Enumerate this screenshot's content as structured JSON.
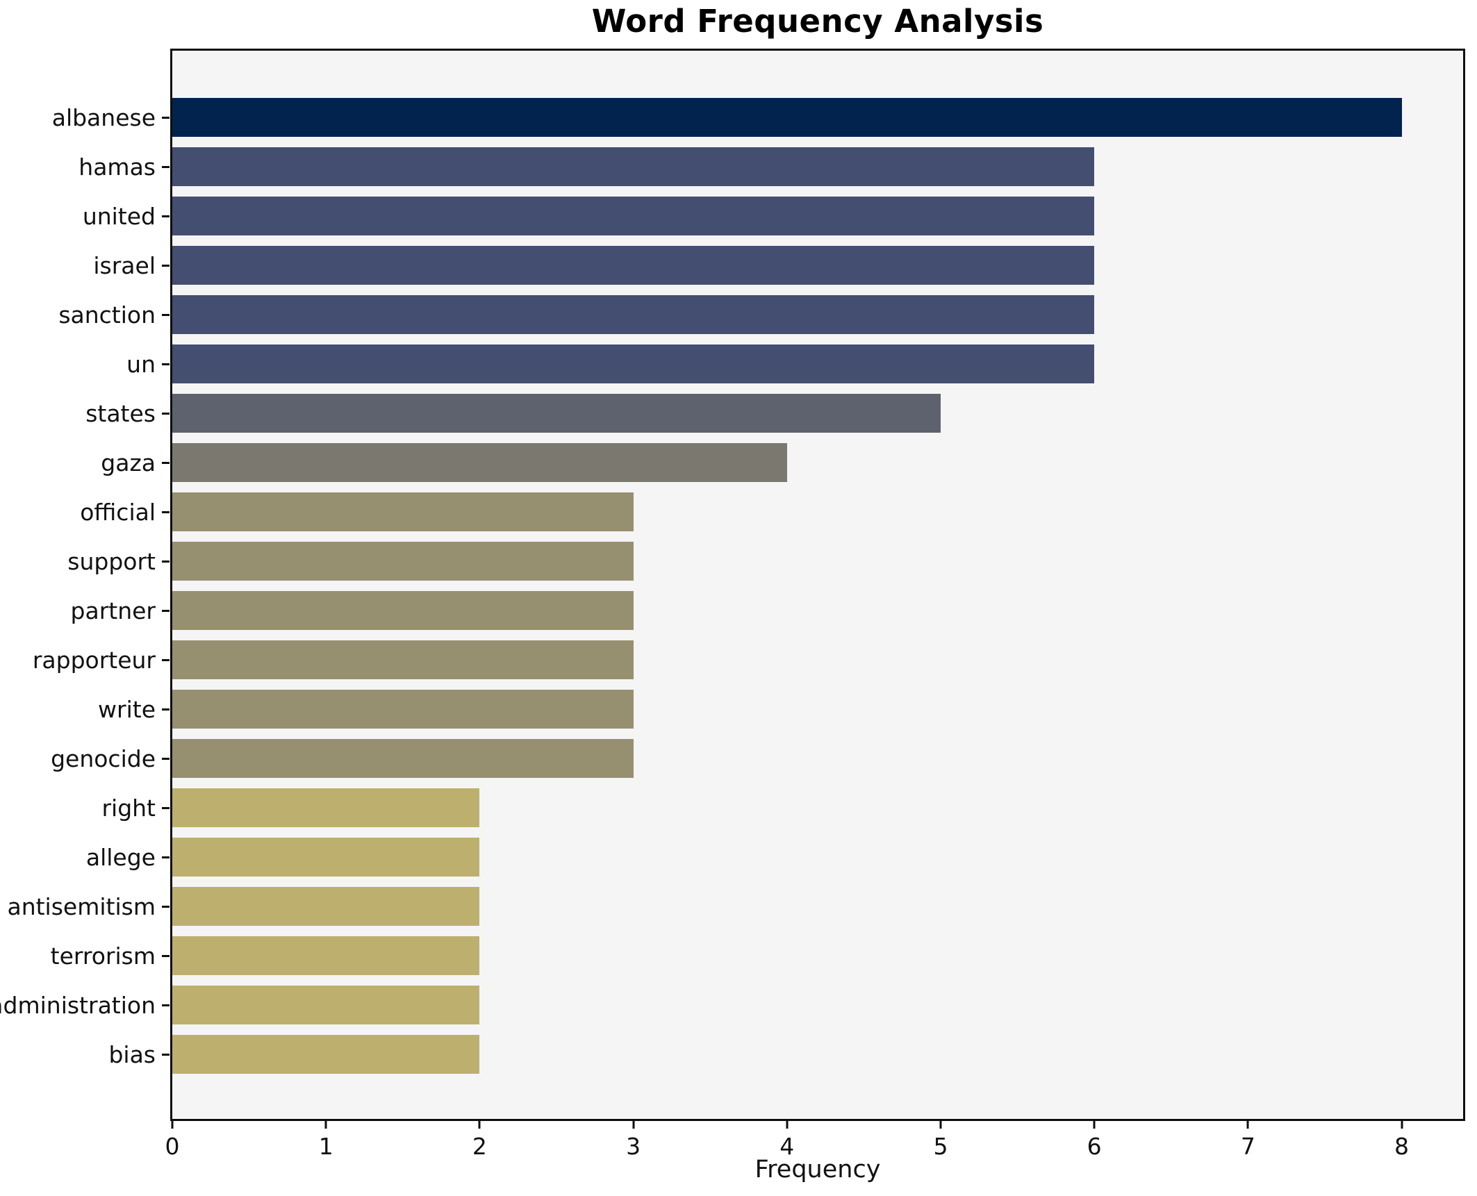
{
  "chart_data": {
    "type": "bar",
    "orientation": "horizontal",
    "title": "Word Frequency Analysis",
    "xlabel": "Frequency",
    "ylabel": "",
    "xlim": [
      0,
      8.4
    ],
    "x_ticks": [
      0,
      1,
      2,
      3,
      4,
      5,
      6,
      7,
      8
    ],
    "grid": false,
    "legend": false,
    "plot_background": "#f5f5f6",
    "figure_background": "#ffffff",
    "axis_color": "#0e0e0e",
    "categories": [
      "albanese",
      "hamas",
      "united",
      "israel",
      "sanction",
      "un",
      "states",
      "gaza",
      "official",
      "support",
      "partner",
      "rapporteur",
      "write",
      "genocide",
      "right",
      "allege",
      "antisemitism",
      "terrorism",
      "administration",
      "bias"
    ],
    "values": [
      8,
      6,
      6,
      6,
      6,
      6,
      5,
      4,
      3,
      3,
      3,
      3,
      3,
      3,
      2,
      2,
      2,
      2,
      2,
      2
    ],
    "bar_colors": [
      "#03234f",
      "#444e70",
      "#444e70",
      "#444e70",
      "#444e70",
      "#444e70",
      "#5d626e",
      "#7b786f",
      "#979070",
      "#979070",
      "#979070",
      "#979070",
      "#979070",
      "#979070",
      "#bdb06f",
      "#bdb06f",
      "#bdb06f",
      "#bdb06f",
      "#bdb06f",
      "#bdb06f"
    ]
  }
}
